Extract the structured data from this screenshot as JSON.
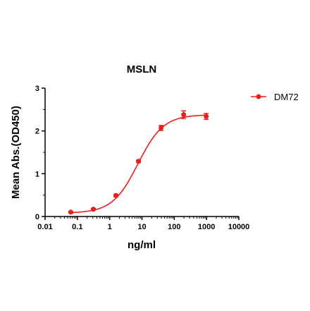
{
  "colors": {
    "series": "#ee1c1c",
    "axis": "#000000"
  },
  "chart_data": {
    "type": "scatter",
    "title": "MSLN",
    "xlabel": "ng/ml",
    "ylabel": "Mean Abs.(OD450)",
    "xscale": "log",
    "xlim": [
      0.01,
      10000
    ],
    "ylim": [
      0,
      3
    ],
    "xticks": [
      0.01,
      0.1,
      1,
      10,
      100,
      1000,
      10000
    ],
    "xtick_labels": [
      "0.01",
      "0.1",
      "1",
      "10",
      "100",
      "1000",
      "10000"
    ],
    "yticks": [
      0,
      1,
      2,
      3
    ],
    "ytick_labels": [
      "0",
      "1",
      "2",
      "3"
    ],
    "legend_position": "top-right",
    "series": [
      {
        "name": "DM72",
        "x": [
          0.0625,
          0.3125,
          1.5625,
          7.8125,
          39.0625,
          195.3125,
          976.5625
        ],
        "y": [
          0.1,
          0.17,
          0.49,
          1.29,
          2.07,
          2.38,
          2.34
        ],
        "error": [
          0.02,
          0.02,
          0.03,
          0.03,
          0.06,
          0.09,
          0.07
        ],
        "fit": {
          "model": "4PL",
          "bottom": 0.08,
          "top": 2.38,
          "ec50": 7.5,
          "hill": 1.1
        }
      }
    ]
  }
}
